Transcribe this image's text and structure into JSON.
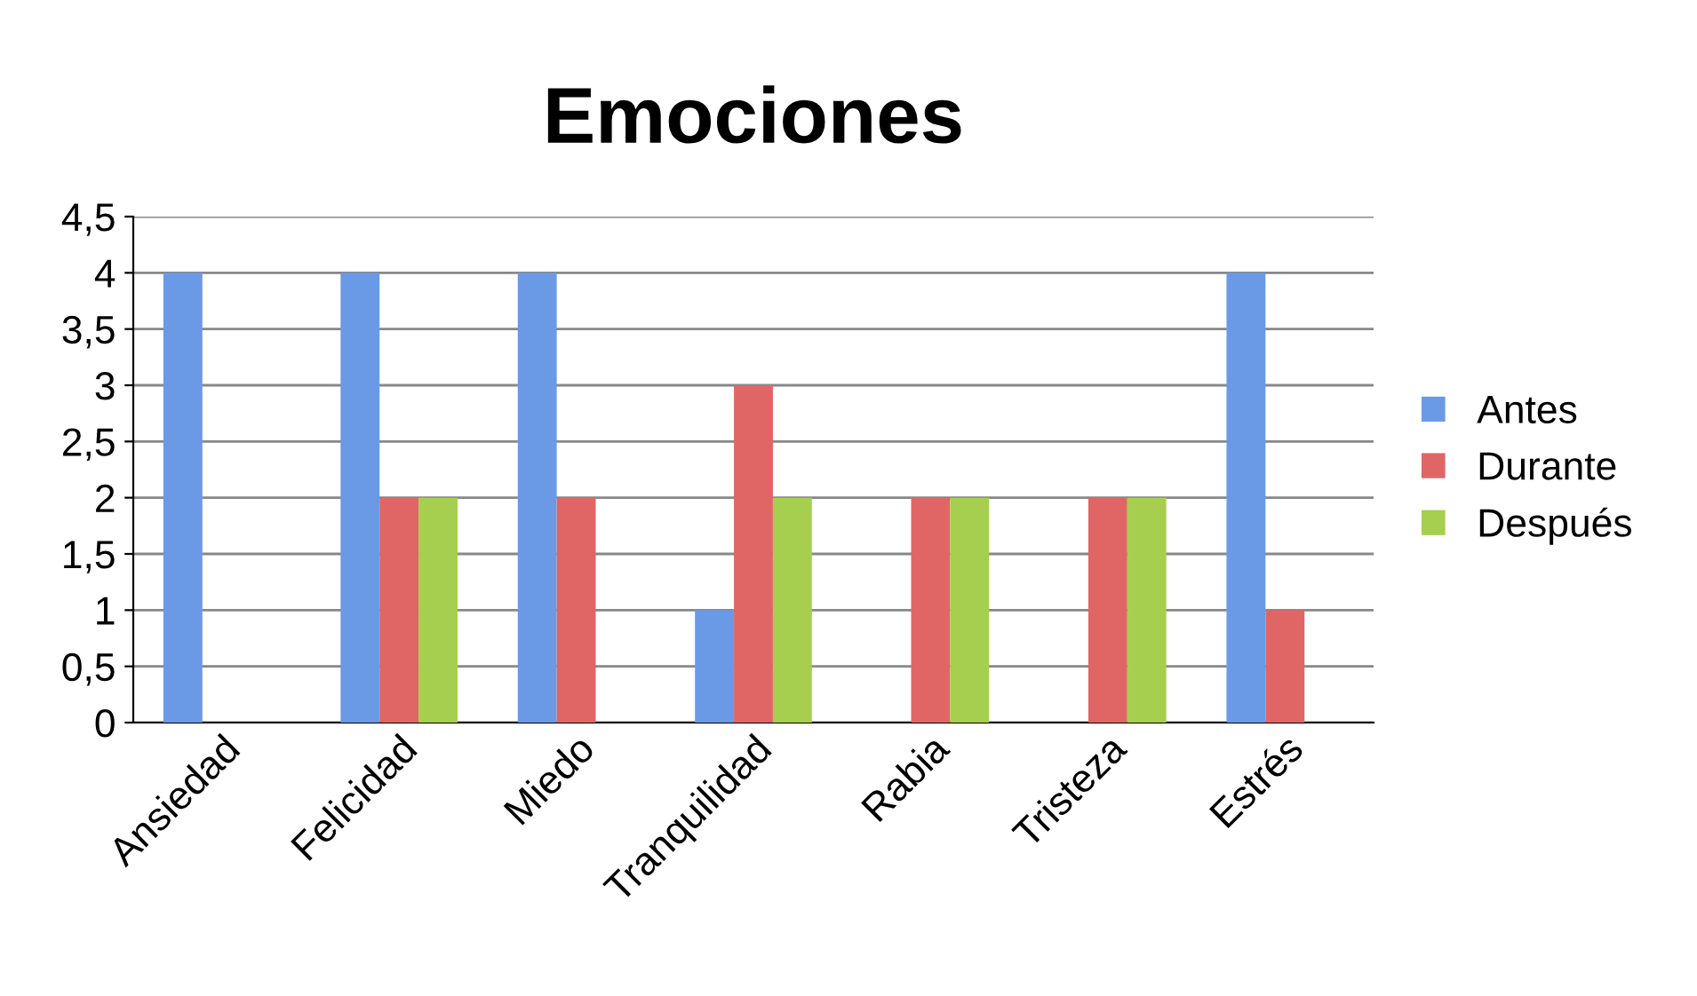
{
  "chart_data": {
    "type": "bar",
    "title": "Emociones",
    "categories": [
      "Ansiedad",
      "Felicidad",
      "Miedo",
      "Tranquilidad",
      "Rabia",
      "Tristeza",
      "Estrés"
    ],
    "series": [
      {
        "name": "Antes",
        "color": "#6a9ae6",
        "values": [
          4,
          4,
          4,
          1,
          null,
          null,
          4
        ]
      },
      {
        "name": "Durante",
        "color": "#e06666",
        "values": [
          null,
          2,
          2,
          3,
          2,
          2,
          1
        ]
      },
      {
        "name": "Después",
        "color": "#a6cf4f",
        "values": [
          null,
          2,
          null,
          2,
          2,
          2,
          null
        ]
      }
    ],
    "ylim": [
      0,
      4.5
    ],
    "yticks": [
      0,
      {
        "value": 0.5,
        "label": "0,5"
      },
      1,
      {
        "value": 1.5,
        "label": "1,5"
      },
      2,
      {
        "value": 2.5,
        "label": "2,5"
      },
      3,
      {
        "value": 3.5,
        "label": "3,5"
      },
      4,
      {
        "value": 4.5,
        "label": "4,5"
      }
    ],
    "grid": "y",
    "legend": "right"
  }
}
